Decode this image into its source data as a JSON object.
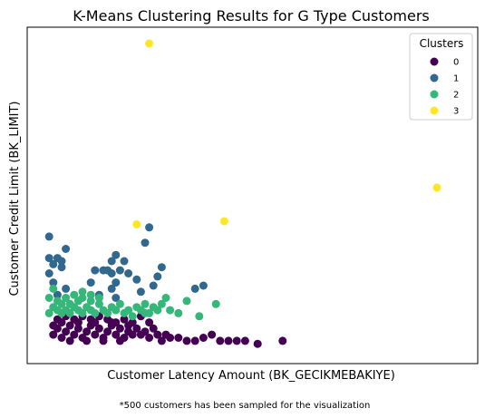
{
  "chart_data": {
    "type": "scatter",
    "title": "K-Means Clustering Results for G Type Customers",
    "xlabel": "Customer Latency Amount (BK_GECIKMEBAKIYE)",
    "ylabel": "Customer Credit Limit (BK_LIMIT)",
    "footnote": "*500 customers has been sampled for the visualization",
    "xlim": [
      0,
      100
    ],
    "ylim": [
      0,
      100
    ],
    "show_ticks": false,
    "grid": false,
    "legend": {
      "title": "Clusters",
      "placement": "top-right",
      "entries": [
        "0",
        "1",
        "2",
        "3"
      ]
    },
    "series": [
      {
        "name": "0",
        "color": "#440154",
        "points": [
          [
            3,
            5
          ],
          [
            4,
            7
          ],
          [
            5,
            4
          ],
          [
            6,
            6
          ],
          [
            7,
            8
          ],
          [
            8,
            5
          ],
          [
            9,
            7
          ],
          [
            10,
            4
          ],
          [
            11,
            6
          ],
          [
            12,
            8
          ],
          [
            13,
            5
          ],
          [
            14,
            7
          ],
          [
            15,
            4
          ],
          [
            16,
            6
          ],
          [
            17,
            8
          ],
          [
            18,
            5
          ],
          [
            19,
            7
          ],
          [
            20,
            4
          ],
          [
            21,
            6
          ],
          [
            22,
            5
          ],
          [
            23,
            7
          ],
          [
            24,
            5
          ],
          [
            3,
            8
          ],
          [
            5,
            9
          ],
          [
            7,
            3
          ],
          [
            9,
            9
          ],
          [
            11,
            3
          ],
          [
            13,
            9
          ],
          [
            15,
            3
          ],
          [
            17,
            9
          ],
          [
            19,
            3
          ],
          [
            21,
            8
          ],
          [
            25,
            6
          ],
          [
            26,
            4
          ],
          [
            27,
            7
          ],
          [
            28,
            5
          ],
          [
            29,
            3
          ],
          [
            30,
            5
          ],
          [
            31,
            4
          ],
          [
            33,
            4
          ],
          [
            35,
            3
          ],
          [
            37,
            3
          ],
          [
            39,
            4
          ],
          [
            41,
            5
          ],
          [
            43,
            3
          ],
          [
            45,
            3
          ],
          [
            4,
            10
          ],
          [
            6,
            11
          ],
          [
            8,
            10
          ],
          [
            10,
            11
          ],
          [
            12,
            10
          ],
          [
            14,
            11
          ],
          [
            16,
            10
          ],
          [
            18,
            9
          ],
          [
            20,
            10
          ],
          [
            22,
            9
          ],
          [
            47,
            3
          ],
          [
            49,
            3
          ],
          [
            52,
            2
          ],
          [
            58,
            3
          ],
          [
            26,
            9
          ],
          [
            24,
            11
          ]
        ]
      },
      {
        "name": "1",
        "color": "#31688e",
        "points": [
          [
            2,
            37
          ],
          [
            2,
            30
          ],
          [
            2,
            25
          ],
          [
            3,
            28
          ],
          [
            3,
            22
          ],
          [
            4,
            30
          ],
          [
            4,
            18
          ],
          [
            5,
            29
          ],
          [
            5,
            27
          ],
          [
            6,
            33
          ],
          [
            6,
            20
          ],
          [
            12,
            22
          ],
          [
            13,
            26
          ],
          [
            14,
            18
          ],
          [
            15,
            26
          ],
          [
            16,
            26
          ],
          [
            17,
            25
          ],
          [
            17,
            29
          ],
          [
            18,
            31
          ],
          [
            17,
            20
          ],
          [
            18,
            17
          ],
          [
            19,
            26
          ],
          [
            20,
            29
          ],
          [
            18,
            22
          ],
          [
            21,
            25
          ],
          [
            23,
            23
          ],
          [
            24,
            19
          ],
          [
            25,
            35
          ],
          [
            26,
            40
          ],
          [
            27,
            21
          ],
          [
            28,
            24
          ],
          [
            29,
            27
          ],
          [
            37,
            20
          ],
          [
            39,
            21
          ]
        ]
      },
      {
        "name": "2",
        "color": "#35b779",
        "points": [
          [
            2,
            17
          ],
          [
            2,
            12
          ],
          [
            3,
            14
          ],
          [
            3,
            20
          ],
          [
            4,
            13
          ],
          [
            4,
            16
          ],
          [
            5,
            12
          ],
          [
            5,
            15
          ],
          [
            6,
            13
          ],
          [
            6,
            17
          ],
          [
            7,
            12
          ],
          [
            7,
            15
          ],
          [
            8,
            14
          ],
          [
            9,
            13
          ],
          [
            9,
            16
          ],
          [
            10,
            12
          ],
          [
            10,
            17
          ],
          [
            11,
            14
          ],
          [
            12,
            13
          ],
          [
            12,
            16
          ],
          [
            13,
            12
          ],
          [
            14,
            15
          ],
          [
            15,
            13
          ],
          [
            16,
            12
          ],
          [
            17,
            14
          ],
          [
            18,
            13
          ],
          [
            19,
            15
          ],
          [
            20,
            12
          ],
          [
            21,
            13
          ],
          [
            22,
            11
          ],
          [
            23,
            14
          ],
          [
            24,
            13
          ],
          [
            25,
            12
          ],
          [
            25,
            15
          ],
          [
            26,
            12
          ],
          [
            27,
            14
          ],
          [
            28,
            13
          ],
          [
            29,
            15
          ],
          [
            30,
            17
          ],
          [
            31,
            13
          ],
          [
            33,
            12
          ],
          [
            35,
            16
          ],
          [
            38,
            11
          ],
          [
            42,
            15
          ],
          [
            8,
            18
          ],
          [
            10,
            19
          ],
          [
            12,
            18
          ],
          [
            14,
            17
          ]
        ]
      },
      {
        "name": "3",
        "color": "#fde725",
        "points": [
          [
            26,
            100
          ],
          [
            23,
            41
          ],
          [
            44,
            42
          ],
          [
            95,
            53
          ]
        ]
      }
    ]
  }
}
